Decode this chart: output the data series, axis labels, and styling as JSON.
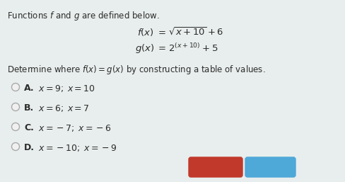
{
  "bg_color": "#e8eeed",
  "text_color": "#2c2c2c",
  "title": "Functions $f$ and $g$ are defined below.",
  "determine": "Determine where $f(x) = g(x)$ by constructing a table of values.",
  "f_left": "$f(x)$",
  "f_eq": "$= \\sqrt{x + 10} + 6$",
  "g_left": "$g(x)$",
  "g_eq": "$= 2^{(x+10)} + 5$",
  "options": [
    {
      "letter": "A.",
      "text": "$x = 9;\\; x = 10$"
    },
    {
      "letter": "B.",
      "text": "$x = 6;\\; x = 7$"
    },
    {
      "letter": "C.",
      "text": "$x = -7;\\; x = -6$"
    },
    {
      "letter": "D.",
      "text": "$x = -10;\\; x = -9$"
    }
  ],
  "reset_color": "#c0392b",
  "next_color": "#4ea8d8",
  "btn_text": "#ffffff",
  "circle_color": "#aaaaaa",
  "circle_face": "#f0f0f0"
}
